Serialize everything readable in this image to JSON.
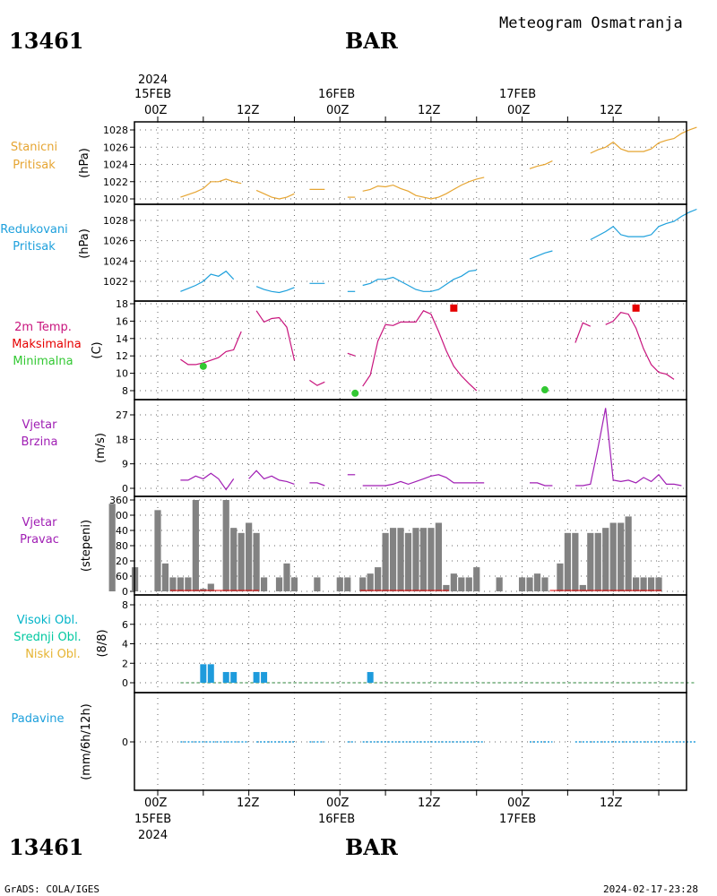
{
  "header": {
    "station": "13461",
    "location": "BAR",
    "title": "Meteogram Osmatranja"
  },
  "footer": {
    "station": "13461",
    "location": "BAR",
    "credit": "GrADS: COLA/IGES",
    "timestamp": "2024-02-17-23:28"
  },
  "time_axis": {
    "year": "2024",
    "days": [
      "15FEB",
      "16FEB",
      "17FEB"
    ],
    "hours": [
      "00Z",
      "12Z",
      "00Z",
      "12Z",
      "00Z",
      "12Z"
    ]
  },
  "colors": {
    "stanicni": "#e6a532",
    "redukovani": "#1ea0dc",
    "temp": "#c8147d",
    "max": "#e60000",
    "min": "#32c832",
    "wind": "#a01eb4",
    "bars": "#828282",
    "cloud": "#1e9bdc",
    "precip": "#1e9bdc",
    "visoki": "#00b4c8",
    "srednji": "#00c8a0",
    "niski": "#e6b432",
    "padavine": "#1ea0dc"
  },
  "panels": {
    "stanicni": {
      "label1": "Stanicni",
      "label2": "Pritisak",
      "unit": "(hPa)",
      "ticks": [
        "1020",
        "1022",
        "1024",
        "1026",
        "1028"
      ]
    },
    "redukovani": {
      "label1": "Redukovani",
      "label2": "Pritisak",
      "unit": "(hPa)",
      "ticks": [
        "1022",
        "1024",
        "1026",
        "1028"
      ]
    },
    "temp": {
      "label1": "2m Temp.",
      "label2": "Maksimalna",
      "label3": "Minimalna",
      "unit": "(C)",
      "ticks": [
        "8",
        "10",
        "12",
        "14",
        "16",
        "18"
      ]
    },
    "brzina": {
      "label1": "Vjetar",
      "label2": "Brzina",
      "unit": "(m/s)",
      "ticks": [
        "0",
        "9",
        "18",
        "27"
      ]
    },
    "pravac": {
      "label1": "Vjetar",
      "label2": "Pravac",
      "unit": "(stepeni)",
      "ticks": [
        "0",
        "60",
        "120",
        "180",
        "240",
        "300",
        "360"
      ]
    },
    "oblaci": {
      "label1": "Visoki Obl.",
      "label2": "Srednji Obl.",
      "label3": "Niski Obl.",
      "unit": "(8/8)",
      "ticks": [
        "0",
        "2",
        "4",
        "6",
        "8"
      ]
    },
    "padavine": {
      "label1": "Padavine",
      "unit": "(mm/6h/12h)",
      "ticks": [
        "0"
      ]
    }
  },
  "chart_data": {
    "type": "line",
    "x_unit": "hours since 2024-02-14 21Z",
    "x_range": [
      0,
      74
    ],
    "series": {
      "stanicni_pritisak": [
        [
          6,
          1020.2
        ],
        [
          7,
          1020.5
        ],
        [
          8,
          1020.8
        ],
        [
          9,
          1021.2
        ],
        [
          10,
          1022.0
        ],
        [
          11,
          1022.0
        ],
        [
          12,
          1022.3
        ],
        [
          13,
          1022.0
        ],
        [
          14,
          1021.8
        ],
        null,
        [
          16,
          1021.0
        ],
        [
          17,
          1020.6
        ],
        [
          18,
          1020.2
        ],
        [
          19,
          1020.0
        ],
        [
          20,
          1020.2
        ],
        [
          21,
          1020.6
        ],
        null,
        [
          23,
          1021.1
        ],
        [
          24,
          1021.1
        ],
        [
          25,
          1021.1
        ],
        null,
        [
          28,
          1020.2
        ],
        [
          29,
          1020.2
        ],
        null,
        [
          30,
          1020.9
        ],
        [
          31,
          1021.1
        ],
        [
          32,
          1021.5
        ],
        [
          33,
          1021.4
        ],
        [
          34,
          1021.6
        ],
        [
          35,
          1021.2
        ],
        [
          36,
          1020.9
        ],
        [
          37,
          1020.4
        ],
        [
          38,
          1020.2
        ],
        [
          39,
          1020.0
        ],
        [
          40,
          1020.2
        ],
        [
          41,
          1020.6
        ],
        [
          42,
          1021.1
        ],
        [
          43,
          1021.6
        ],
        [
          44,
          1022.0
        ],
        [
          45,
          1022.3
        ],
        [
          46,
          1022.5
        ],
        null,
        [
          52,
          1023.5
        ],
        [
          53,
          1023.8
        ],
        [
          54,
          1024.0
        ],
        [
          55,
          1024.4
        ],
        null,
        [
          60,
          1025.3
        ],
        [
          61,
          1025.7
        ],
        [
          62,
          1026.0
        ],
        [
          63,
          1026.6
        ],
        [
          64,
          1025.8
        ],
        [
          65,
          1025.5
        ],
        [
          66,
          1025.5
        ],
        [
          67,
          1025.5
        ],
        [
          68,
          1025.8
        ],
        [
          69,
          1026.5
        ],
        [
          70,
          1026.8
        ],
        [
          71,
          1027.0
        ],
        [
          72,
          1027.6
        ],
        [
          73,
          1028.0
        ],
        [
          74,
          1028.3
        ]
      ],
      "redukovani_pritisak": [
        [
          6,
          1021.0
        ],
        [
          7,
          1021.3
        ],
        [
          8,
          1021.6
        ],
        [
          9,
          1022.0
        ],
        [
          10,
          1022.7
        ],
        [
          11,
          1022.5
        ],
        [
          12,
          1023.0
        ],
        [
          13,
          1022.2
        ],
        null,
        [
          16,
          1021.5
        ],
        [
          17,
          1021.2
        ],
        [
          18,
          1021.0
        ],
        [
          19,
          1020.9
        ],
        [
          20,
          1021.1
        ],
        [
          21,
          1021.4
        ],
        null,
        [
          23,
          1021.8
        ],
        [
          24,
          1021.8
        ],
        [
          25,
          1021.8
        ],
        null,
        [
          28,
          1021.0
        ],
        [
          29,
          1021.0
        ],
        null,
        [
          30,
          1021.6
        ],
        [
          31,
          1021.8
        ],
        [
          32,
          1022.2
        ],
        [
          33,
          1022.2
        ],
        [
          34,
          1022.4
        ],
        [
          35,
          1022.0
        ],
        [
          36,
          1021.6
        ],
        [
          37,
          1021.2
        ],
        [
          38,
          1021.0
        ],
        [
          39,
          1021.0
        ],
        [
          40,
          1021.2
        ],
        [
          41,
          1021.7
        ],
        [
          42,
          1022.2
        ],
        [
          43,
          1022.5
        ],
        [
          44,
          1023.0
        ],
        [
          45,
          1023.1
        ],
        null,
        [
          52,
          1024.2
        ],
        [
          53,
          1024.5
        ],
        [
          54,
          1024.8
        ],
        [
          55,
          1025.0
        ],
        null,
        [
          60,
          1026.1
        ],
        [
          61,
          1026.5
        ],
        [
          62,
          1026.9
        ],
        [
          63,
          1027.4
        ],
        [
          64,
          1026.6
        ],
        [
          65,
          1026.4
        ],
        [
          66,
          1026.4
        ],
        [
          67,
          1026.4
        ],
        [
          68,
          1026.6
        ],
        [
          69,
          1027.4
        ],
        [
          70,
          1027.7
        ],
        [
          71,
          1027.9
        ],
        [
          72,
          1028.4
        ],
        [
          73,
          1028.8
        ],
        [
          74,
          1029.1
        ]
      ],
      "temperatura": [
        [
          6,
          11.6
        ],
        [
          7,
          11.0
        ],
        [
          8,
          11.0
        ],
        [
          9,
          11.2
        ],
        [
          10,
          11.5
        ],
        [
          11,
          11.8
        ],
        [
          12,
          12.5
        ],
        [
          13,
          12.7
        ],
        [
          14,
          14.8
        ],
        null,
        [
          16,
          17.2
        ],
        [
          17,
          15.9
        ],
        [
          18,
          16.3
        ],
        [
          19,
          16.4
        ],
        [
          20,
          15.3
        ],
        [
          21,
          11.5
        ],
        null,
        [
          23,
          9.2
        ],
        [
          24,
          8.6
        ],
        [
          25,
          9.0
        ],
        null,
        [
          28,
          12.3
        ],
        [
          29,
          12.0
        ],
        null,
        [
          30,
          8.5
        ],
        [
          31,
          9.8
        ],
        [
          32,
          13.7
        ],
        [
          33,
          15.6
        ],
        [
          34,
          15.5
        ],
        [
          35,
          15.9
        ],
        [
          36,
          15.9
        ],
        [
          37,
          15.9
        ],
        [
          38,
          17.2
        ],
        [
          39,
          16.8
        ],
        [
          40,
          14.8
        ],
        [
          41,
          12.6
        ],
        [
          42,
          10.8
        ],
        [
          43,
          9.7
        ],
        [
          44,
          8.8
        ],
        [
          45,
          8.0
        ],
        null,
        [
          58,
          13.5
        ],
        [
          59,
          15.8
        ],
        [
          60,
          15.4
        ],
        null,
        [
          62,
          15.6
        ],
        [
          63,
          16.0
        ],
        [
          64,
          17.0
        ],
        [
          65,
          16.8
        ],
        [
          66,
          15.2
        ],
        [
          67,
          12.8
        ],
        [
          68,
          11.0
        ],
        [
          69,
          10.1
        ],
        [
          70,
          9.9
        ],
        [
          71,
          9.3
        ]
      ],
      "temp_max": [
        [
          42,
          17.5
        ],
        [
          66,
          17.5
        ]
      ],
      "temp_min": [
        [
          9,
          10.8
        ],
        [
          29,
          7.7
        ],
        [
          54,
          8.1
        ]
      ],
      "vjetar_brzina": [
        [
          6,
          3
        ],
        [
          7,
          3
        ],
        [
          8,
          4.5
        ],
        [
          9,
          3.5
        ],
        [
          10,
          5.5
        ],
        [
          11,
          3.5
        ],
        [
          12,
          -0.5
        ],
        [
          13,
          3.5
        ],
        null,
        [
          15,
          3.5
        ],
        [
          16,
          6.5
        ],
        [
          17,
          3.5
        ],
        [
          18,
          4.5
        ],
        [
          19,
          3
        ],
        [
          20,
          2.5
        ],
        [
          21,
          1.5
        ],
        null,
        [
          23,
          2
        ],
        [
          24,
          2
        ],
        [
          25,
          1
        ],
        null,
        [
          28,
          5
        ],
        [
          29,
          5
        ],
        null,
        [
          30,
          1
        ],
        [
          31,
          1
        ],
        [
          32,
          1
        ],
        [
          33,
          1
        ],
        [
          34,
          1.5
        ],
        [
          35,
          2.5
        ],
        [
          36,
          1.5
        ],
        [
          37,
          2.5
        ],
        [
          38,
          3.5
        ],
        [
          39,
          4.5
        ],
        [
          40,
          5
        ],
        [
          41,
          4
        ],
        [
          42,
          2
        ],
        [
          43,
          2
        ],
        [
          44,
          2
        ],
        [
          45,
          2
        ],
        [
          46,
          2
        ],
        null,
        [
          52,
          2
        ],
        [
          53,
          2
        ],
        [
          54,
          1
        ],
        [
          55,
          1
        ],
        null,
        [
          58,
          1
        ],
        [
          59,
          1
        ],
        [
          60,
          1.5
        ],
        [
          61,
          15
        ],
        [
          62,
          29.5
        ],
        [
          63,
          3
        ],
        [
          64,
          2.5
        ],
        [
          65,
          3
        ],
        [
          66,
          2
        ],
        [
          67,
          4
        ],
        [
          68,
          2.5
        ],
        [
          69,
          5
        ],
        [
          70,
          1.5
        ],
        [
          71,
          1.5
        ],
        [
          72,
          1
        ]
      ],
      "vjetar_pravac": [
        [
          -3,
          345
        ],
        [
          0,
          95
        ],
        [
          3,
          320
        ],
        [
          4,
          110
        ],
        [
          5,
          55
        ],
        [
          6,
          55
        ],
        [
          7,
          55
        ],
        [
          8,
          360
        ],
        [
          9,
          10
        ],
        [
          10,
          30
        ],
        [
          12,
          360
        ],
        [
          13,
          250
        ],
        [
          14,
          230
        ],
        [
          15,
          270
        ],
        [
          16,
          230
        ],
        [
          17,
          55
        ],
        [
          19,
          55
        ],
        [
          20,
          110
        ],
        [
          21,
          55
        ],
        [
          24,
          55
        ],
        [
          27,
          55
        ],
        [
          28,
          55
        ],
        [
          30,
          55
        ],
        [
          31,
          70
        ],
        [
          32,
          95
        ],
        [
          33,
          230
        ],
        [
          34,
          250
        ],
        [
          35,
          250
        ],
        [
          36,
          230
        ],
        [
          37,
          250
        ],
        [
          38,
          250
        ],
        [
          39,
          250
        ],
        [
          40,
          270
        ],
        [
          41,
          25
        ],
        [
          42,
          70
        ],
        [
          43,
          55
        ],
        [
          44,
          55
        ],
        [
          45,
          95
        ],
        [
          48,
          55
        ],
        [
          51,
          55
        ],
        [
          52,
          55
        ],
        [
          53,
          70
        ],
        [
          54,
          55
        ],
        [
          56,
          110
        ],
        [
          57,
          230
        ],
        [
          58,
          230
        ],
        [
          59,
          25
        ],
        [
          60,
          230
        ],
        [
          61,
          230
        ],
        [
          62,
          250
        ],
        [
          63,
          270
        ],
        [
          64,
          270
        ],
        [
          65,
          295
        ],
        [
          66,
          55
        ],
        [
          67,
          55
        ],
        [
          68,
          55
        ],
        [
          69,
          55
        ]
      ],
      "oblaci_niski": [
        [
          9,
          1.9
        ],
        [
          10,
          1.9
        ],
        [
          12,
          1.1
        ],
        [
          13,
          1.1
        ],
        [
          16,
          1.1
        ],
        [
          17,
          1.1
        ],
        [
          31,
          1.1
        ]
      ],
      "padavine": [
        0
      ]
    }
  }
}
